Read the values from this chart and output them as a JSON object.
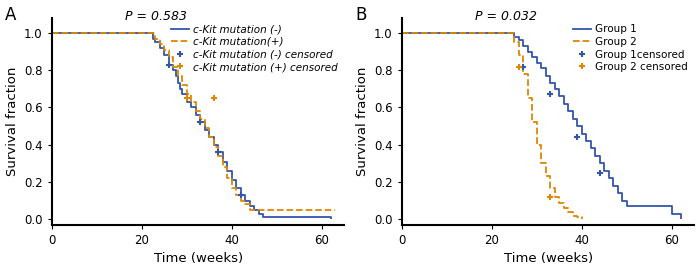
{
  "panel_A": {
    "label": "A",
    "p_value": "P = 0.583",
    "blue_solid": {
      "times": [
        0,
        22,
        22.5,
        23,
        24,
        25,
        26,
        27,
        27.5,
        28,
        28.5,
        29,
        30,
        31,
        32,
        33,
        34,
        35,
        36,
        37,
        38,
        39,
        40,
        41,
        42,
        43,
        44,
        45,
        46,
        47,
        60,
        62
      ],
      "surv": [
        1.0,
        1.0,
        0.97,
        0.95,
        0.92,
        0.88,
        0.83,
        0.8,
        0.77,
        0.73,
        0.7,
        0.67,
        0.63,
        0.6,
        0.56,
        0.52,
        0.48,
        0.44,
        0.4,
        0.36,
        0.31,
        0.26,
        0.21,
        0.17,
        0.13,
        0.1,
        0.07,
        0.05,
        0.03,
        0.01,
        0.01,
        0.0
      ],
      "censored_times": [
        26,
        33,
        37,
        42
      ],
      "censored_surv": [
        0.83,
        0.52,
        0.36,
        0.13
      ]
    },
    "orange_dashed": {
      "times": [
        0,
        22,
        23,
        24,
        25,
        26,
        27,
        28,
        29,
        30,
        31,
        32,
        33,
        34,
        35,
        36,
        37,
        38,
        39,
        40,
        41,
        42,
        43,
        44,
        63
      ],
      "surv": [
        1.0,
        1.0,
        0.97,
        0.94,
        0.91,
        0.87,
        0.82,
        0.77,
        0.72,
        0.67,
        0.63,
        0.58,
        0.54,
        0.49,
        0.44,
        0.39,
        0.34,
        0.28,
        0.22,
        0.17,
        0.13,
        0.1,
        0.08,
        0.05,
        0.05
      ],
      "censored_times": [
        30,
        36
      ],
      "censored_surv": [
        0.65,
        0.65
      ]
    },
    "legend_labels": [
      "c-Kit mutation (-)",
      "c-Kit mutation(+)",
      "c-Kit mutation (-) censored",
      "c-Kit mutation (+) censored"
    ],
    "xlabel": "Time (weeks)",
    "ylabel": "Survival fraction",
    "xlim": [
      0,
      65
    ],
    "ylim": [
      -0.03,
      1.08
    ],
    "xticks": [
      0,
      20,
      40,
      60
    ],
    "yticks": [
      0.0,
      0.2,
      0.4,
      0.6,
      0.8,
      1.0
    ]
  },
  "panel_B": {
    "label": "B",
    "p_value": "P = 0.032",
    "blue_solid": {
      "times": [
        0,
        24,
        25,
        26,
        27,
        28,
        29,
        30,
        31,
        32,
        33,
        34,
        35,
        36,
        37,
        38,
        39,
        40,
        41,
        42,
        43,
        44,
        45,
        46,
        47,
        48,
        49,
        50,
        60,
        62
      ],
      "surv": [
        1.0,
        1.0,
        0.98,
        0.96,
        0.93,
        0.9,
        0.87,
        0.84,
        0.81,
        0.77,
        0.73,
        0.7,
        0.66,
        0.62,
        0.58,
        0.54,
        0.5,
        0.46,
        0.42,
        0.38,
        0.34,
        0.3,
        0.26,
        0.22,
        0.18,
        0.14,
        0.1,
        0.07,
        0.03,
        0.0
      ],
      "censored_times": [
        27,
        33,
        39,
        44
      ],
      "censored_surv": [
        0.82,
        0.67,
        0.44,
        0.25
      ]
    },
    "orange_dashed": {
      "times": [
        0,
        24,
        25,
        26,
        27,
        28,
        29,
        30,
        31,
        32,
        33,
        34,
        35,
        36,
        37,
        38,
        39,
        40
      ],
      "surv": [
        1.0,
        1.0,
        0.95,
        0.88,
        0.78,
        0.65,
        0.52,
        0.4,
        0.3,
        0.23,
        0.17,
        0.12,
        0.09,
        0.06,
        0.04,
        0.02,
        0.01,
        0.0
      ],
      "censored_times": [
        26,
        33
      ],
      "censored_surv": [
        0.82,
        0.12
      ]
    },
    "legend_labels": [
      "Group 1",
      "Group 2",
      "Group 1censored",
      "Group 2 censored"
    ],
    "xlabel": "Time (weeks)",
    "ylabel": "Survival fraction",
    "xlim": [
      0,
      65
    ],
    "ylim": [
      -0.03,
      1.08
    ],
    "xticks": [
      0,
      20,
      40,
      60
    ],
    "yticks": [
      0.0,
      0.2,
      0.4,
      0.6,
      0.8,
      1.0
    ]
  },
  "blue_color": "#3355AA",
  "orange_color": "#DD8800",
  "bg_color": "#ffffff",
  "fontsize_tick": 8.5,
  "fontsize_label": 9.5,
  "fontsize_legend": 7.5,
  "fontsize_panel": 12,
  "fontsize_pval": 9
}
